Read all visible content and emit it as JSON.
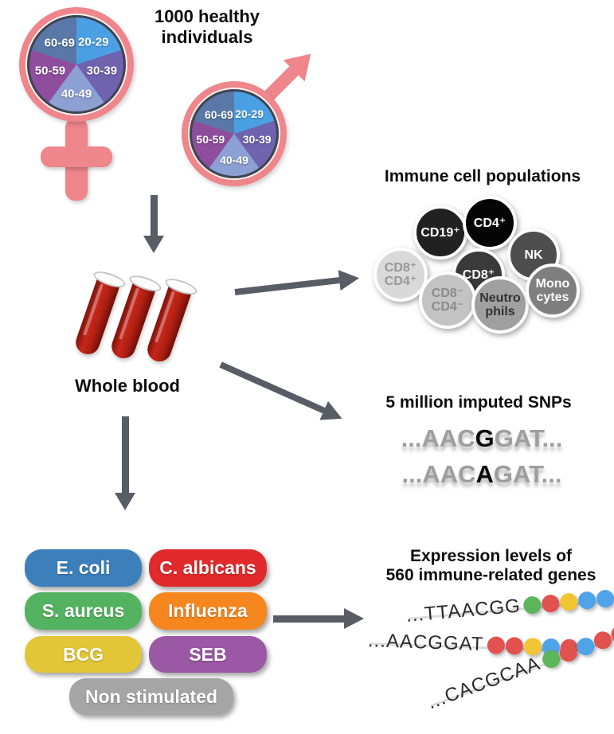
{
  "header": {
    "title_line1": "1000 healthy",
    "title_line2": "individuals"
  },
  "age_pie": {
    "ring_color": "#ee868b",
    "segments": [
      {
        "label": "20-29",
        "color": "#4ba0e4"
      },
      {
        "label": "30-39",
        "color": "#6f63b0"
      },
      {
        "label": "40-49",
        "color": "#8da0d4"
      },
      {
        "label": "50-59",
        "color": "#8e4e9d"
      },
      {
        "label": "60-69",
        "color": "#5978a8"
      }
    ]
  },
  "whole_blood": {
    "label": "Whole blood"
  },
  "immune": {
    "title": "Immune cell populations",
    "cells": [
      {
        "line1": "CD8⁺",
        "line2": "CD4⁺",
        "bg": "#d9d9d9",
        "fg": "#979797"
      },
      {
        "line1": "CD19⁺",
        "line2": "",
        "bg": "#212121",
        "fg": "#ffffff"
      },
      {
        "line1": "CD4⁺",
        "line2": "",
        "bg": "#050505",
        "fg": "#ffffff"
      },
      {
        "line1": "NK",
        "line2": "",
        "bg": "#4e4e4e",
        "fg": "#ffffff"
      },
      {
        "line1": "CD8⁺",
        "line2": "",
        "bg": "#3a3a3a",
        "fg": "#ffffff"
      },
      {
        "line1": "CD8⁻",
        "line2": "CD4⁻",
        "bg": "#c3c3c3",
        "fg": "#8b8b8b"
      },
      {
        "line1": "Neutro",
        "line2": "phils",
        "bg": "#a0a0a0",
        "fg": "#323232"
      },
      {
        "line1": "Mono",
        "line2": "cytes",
        "bg": "#7f7f7f",
        "fg": "#ffffff"
      }
    ]
  },
  "snps": {
    "title": "5 million imputed SNPs",
    "seq1": {
      "pre": "...AAC",
      "snp": "G",
      "post": "GAT..."
    },
    "seq2": {
      "pre": "...AAC",
      "snp": "A",
      "post": "GAT..."
    }
  },
  "stimuli": {
    "items": [
      {
        "label": "E. coli",
        "color": "#3d7fba"
      },
      {
        "label": "C. albicans",
        "color": "#e12a2b"
      },
      {
        "label": "S. aureus",
        "color": "#53b360"
      },
      {
        "label": "Influenza",
        "color": "#f6871f"
      },
      {
        "label": "BCG",
        "color": "#e3c637"
      },
      {
        "label": "SEB",
        "color": "#9b58a5"
      },
      {
        "label": "Non stimulated",
        "color": "#a5a5a5"
      }
    ]
  },
  "expression": {
    "title_line1": "Expression levels of",
    "title_line2": "560 immune-related genes",
    "rows": [
      {
        "text": "...TTAACGG",
        "dots": [
          "#5bb65a",
          "#e2524e",
          "#f1c633",
          "#4fa3e9",
          "#4fa3e9"
        ]
      },
      {
        "text": "...AACGGAT",
        "dots": [
          "#e2524e",
          "#e2524e",
          "#f1c633",
          "#4fa3e9",
          "#e2524e"
        ]
      },
      {
        "text": "...CACGCAA",
        "dots": [
          "#5bb65a",
          "#e2524e",
          "#4fa3e9",
          "#e2524e",
          "#e2524e"
        ]
      }
    ]
  }
}
